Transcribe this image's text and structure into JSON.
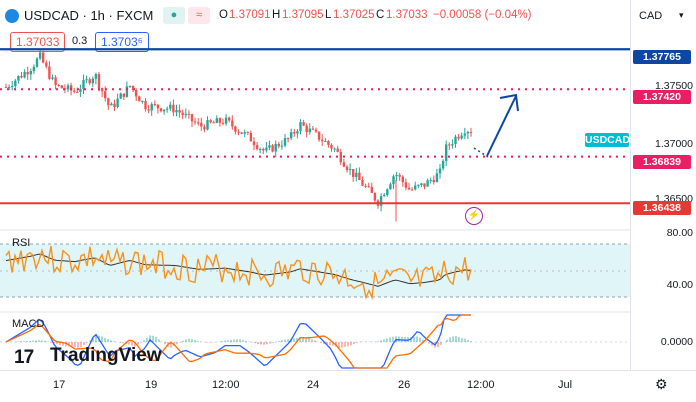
{
  "header": {
    "symbol": "USDCAD · 1h · FXCM",
    "open_label": "O",
    "open": "1.37091",
    "high_label": "H",
    "high": "1.37095",
    "low_label": "L",
    "low": "1.37025",
    "close_label": "C",
    "close": "1.37033",
    "change": "−0.00058 (−0.04%)",
    "bid": "1.37033",
    "spread": "0.3",
    "ask": "1.3703⁶"
  },
  "currency": "CAD",
  "price_axis": {
    "levels": [
      {
        "value": "1.37765",
        "color": "#0d47a1"
      },
      {
        "value": "1.37420",
        "color": "#e91e63"
      },
      {
        "value": "1.36839",
        "color": "#e91e63"
      },
      {
        "value": "1.36438",
        "color": "#e53935"
      }
    ],
    "ticks": [
      "1.37500",
      "1.37000",
      "1.36500"
    ],
    "symbol_badge": "USDCAD",
    "rsi_ticks": [
      "80.00",
      "40.00"
    ],
    "macd_tick": "0.0000"
  },
  "time_axis": [
    "17",
    "19",
    "12:00",
    "24",
    "26",
    "12:00",
    "Jul"
  ],
  "panes": {
    "rsi_label": "RSI",
    "macd_label": "MACD"
  },
  "brand": "TradingView",
  "icons": {
    "eye": "eye-icon",
    "indicator": "indicator-icon",
    "lightning": "lightning-icon",
    "settings": "gear-icon",
    "logo": "tradingview-logo-icon"
  },
  "colors": {
    "up": "#26a69a",
    "down": "#ef5350",
    "resistance": "#0d47a1",
    "dotted": "#e91e63",
    "support": "#e53935",
    "rsi": "#f7931a",
    "rsi_ma": "#333333",
    "macd": "#2962ff",
    "signal": "#ff6d00",
    "badge": "#00bcd4"
  }
}
